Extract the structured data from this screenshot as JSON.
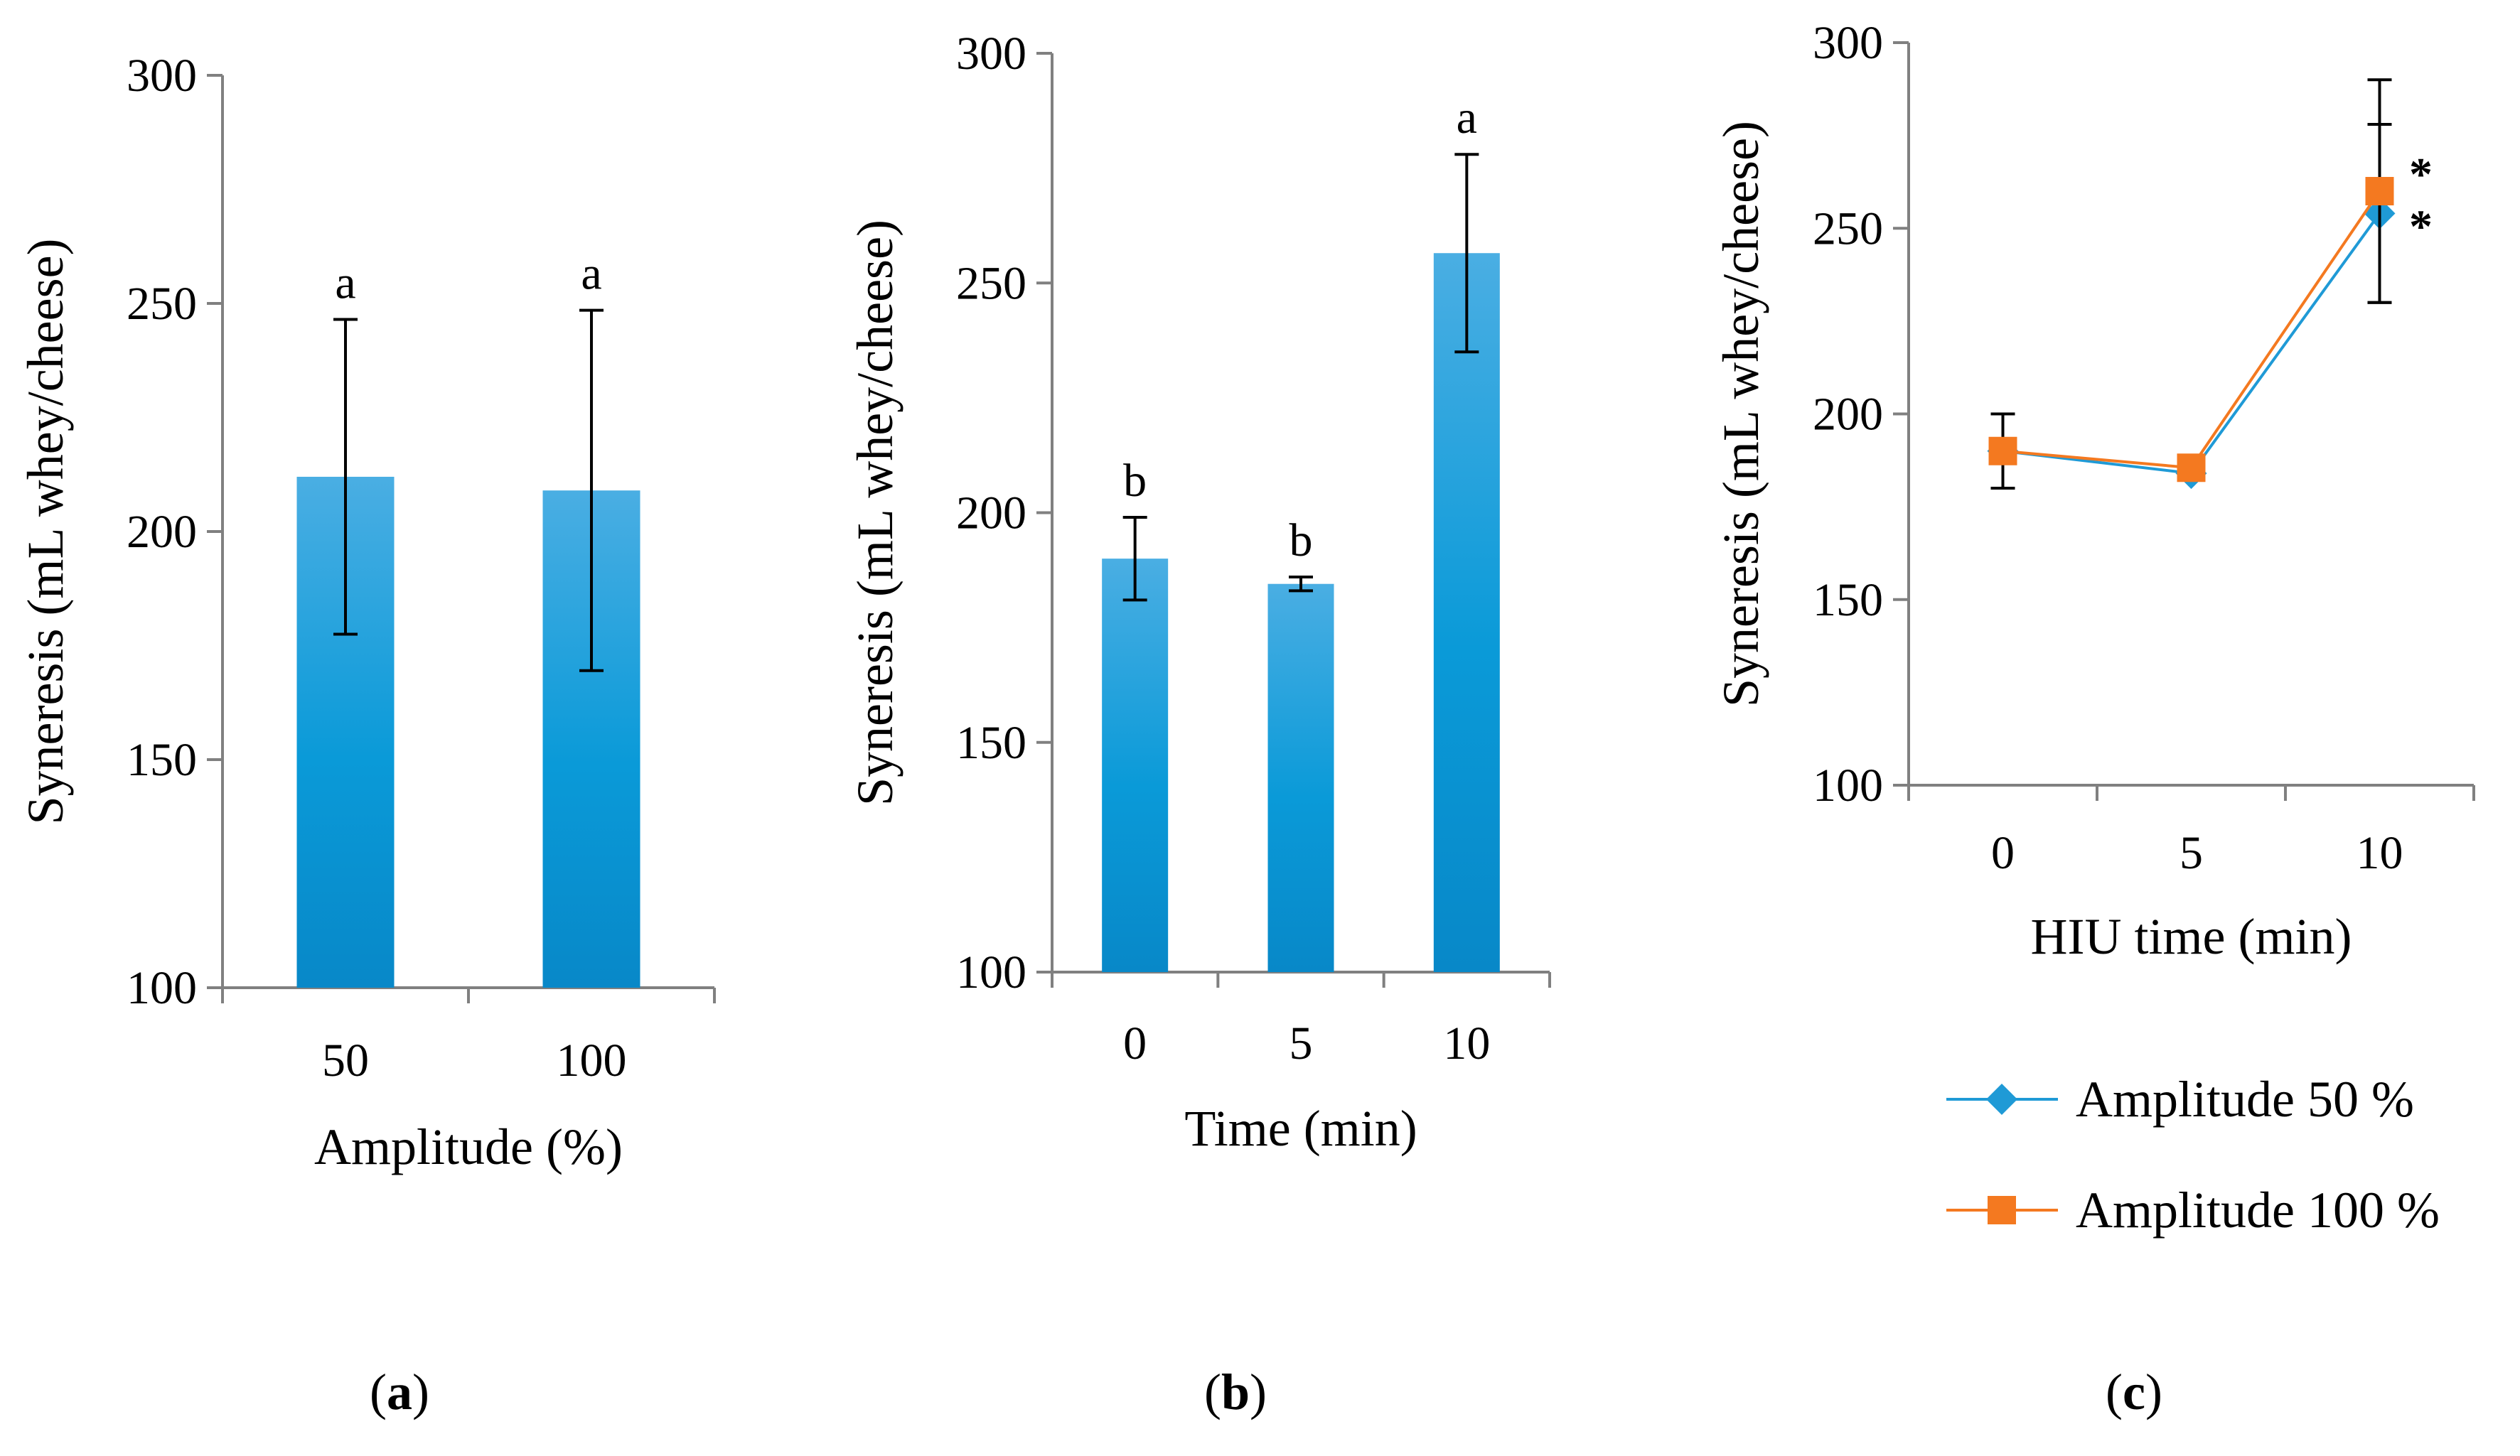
{
  "chart_data": [
    {
      "id": "a",
      "type": "bar",
      "panel_label": "a",
      "categories": [
        "50",
        "100"
      ],
      "values": [
        212,
        209
      ],
      "errors": [
        34.5,
        39.5
      ],
      "significance": [
        "a",
        "a"
      ],
      "xlabel": "Amplitude (%)",
      "ylabel": "Syneresis (mL whey/cheese)",
      "ylim": [
        100,
        300
      ],
      "yticks": [
        "100",
        "150",
        "200",
        "250",
        "300"
      ],
      "bar_color": "#0a9ad8"
    },
    {
      "id": "b",
      "type": "bar",
      "panel_label": "b",
      "categories": [
        "0",
        "5",
        "10"
      ],
      "values": [
        190,
        184.5,
        256.5
      ],
      "errors": [
        9,
        1.5,
        21.5
      ],
      "significance": [
        "b",
        "b",
        "a"
      ],
      "xlabel": "Time (min)",
      "ylabel": "Syneresis (mL whey/cheese)",
      "ylim": [
        100,
        300
      ],
      "yticks": [
        "100",
        "150",
        "200",
        "250",
        "300"
      ],
      "bar_color": "#0a9ad8"
    },
    {
      "id": "c",
      "type": "line",
      "panel_label": "c",
      "categories": [
        "0",
        "5",
        "10"
      ],
      "xlabel": "HIU time (min)",
      "ylabel": "Syneresis (mL whey/cheese)",
      "ylim": [
        100,
        300
      ],
      "yticks": [
        "100",
        "150",
        "200",
        "250",
        "300"
      ],
      "series": [
        {
          "name": "Amplitude 50 %",
          "values": [
            190,
            184,
            254
          ],
          "errors": [
            10,
            1,
            24
          ],
          "color": "#1f9ad6",
          "marker": "diamond",
          "annotation": "*"
        },
        {
          "name": "Amplitude 100 %",
          "values": [
            190,
            185.5,
            260
          ],
          "errors": [
            10,
            1,
            30
          ],
          "color": "#f47920",
          "marker": "square",
          "annotation": "*"
        }
      ],
      "legend": "bottom"
    }
  ]
}
